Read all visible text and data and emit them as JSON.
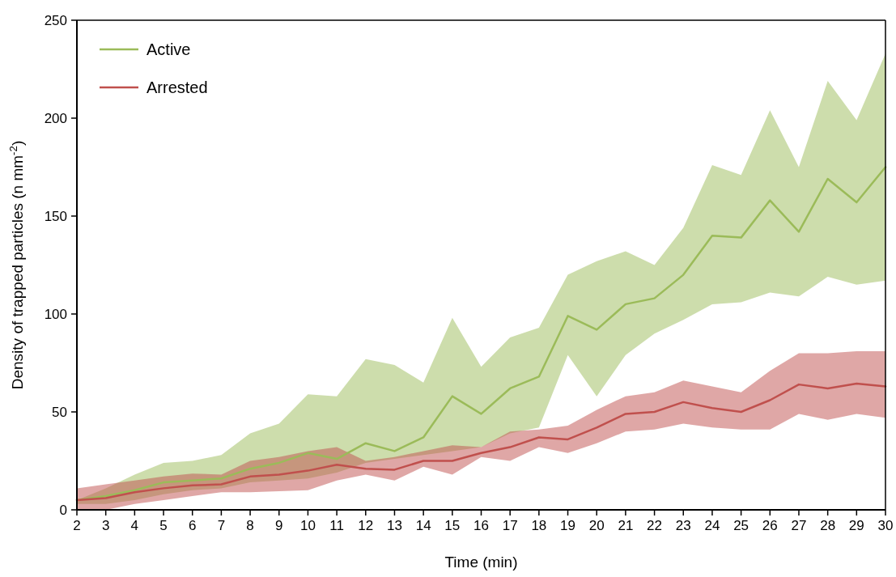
{
  "chart_data": {
    "type": "line",
    "xlabel": "Time (min)",
    "ylabel": "Density of trapped particles (n mm$^{-2}$)",
    "x": [
      2,
      3,
      4,
      5,
      6,
      7,
      8,
      9,
      10,
      11,
      12,
      13,
      14,
      15,
      16,
      17,
      18,
      19,
      20,
      21,
      22,
      23,
      24,
      25,
      26,
      27,
      28,
      29,
      30
    ],
    "xlim": [
      2,
      30
    ],
    "xticks": [
      2,
      3,
      4,
      5,
      6,
      7,
      8,
      9,
      10,
      11,
      12,
      13,
      14,
      15,
      16,
      17,
      18,
      19,
      20,
      21,
      22,
      23,
      24,
      25,
      26,
      27,
      28,
      29,
      30
    ],
    "ylim": [
      0,
      250
    ],
    "yticks": [
      0,
      50,
      100,
      150,
      200,
      250
    ],
    "grid": false,
    "legend": "top left",
    "marker": "none",
    "line_style": "solid",
    "series": [
      {
        "name": "Active",
        "color": "#9bbb59",
        "values": [
          5,
          7,
          10,
          14,
          15,
          16,
          21,
          24,
          29,
          26,
          34,
          30,
          37,
          58,
          49,
          62,
          68,
          99,
          92,
          105,
          108,
          120,
          140,
          139,
          158,
          142,
          169,
          157,
          175
        ],
        "upper": [
          5,
          11,
          18,
          24,
          25,
          28,
          39,
          44,
          59,
          58,
          77,
          74,
          65,
          98,
          73,
          88,
          93,
          120,
          127,
          132,
          125,
          144,
          176,
          171,
          204,
          175,
          219,
          199,
          233
        ],
        "lower": [
          3,
          3,
          5,
          8,
          10,
          11,
          14,
          15,
          16,
          19,
          24,
          26,
          28,
          30,
          32,
          39,
          42,
          79,
          58,
          79,
          90,
          97,
          105,
          106,
          111,
          109,
          119,
          115,
          117
        ]
      },
      {
        "name": "Arrested",
        "color": "#c0504d",
        "values": [
          5,
          6,
          9,
          11,
          12.5,
          13,
          17,
          18,
          20,
          23,
          21,
          20.5,
          25,
          25,
          29,
          32,
          37,
          36,
          42,
          49,
          50,
          55,
          52,
          50,
          56,
          64,
          62,
          64.5,
          63
        ],
        "upper": [
          11,
          13,
          15,
          17,
          18.5,
          18,
          25,
          27,
          30,
          32,
          25,
          27,
          30,
          33,
          32,
          40,
          41,
          43,
          51,
          58,
          60,
          66,
          63,
          60,
          71,
          80,
          80,
          81,
          81
        ],
        "lower": [
          0,
          0,
          3,
          5,
          7,
          9,
          9,
          9.5,
          10,
          15,
          18,
          15,
          22,
          18,
          27,
          25,
          32,
          29,
          34,
          40,
          41,
          44,
          42,
          41,
          41,
          49,
          46,
          49,
          47
        ]
      }
    ]
  }
}
